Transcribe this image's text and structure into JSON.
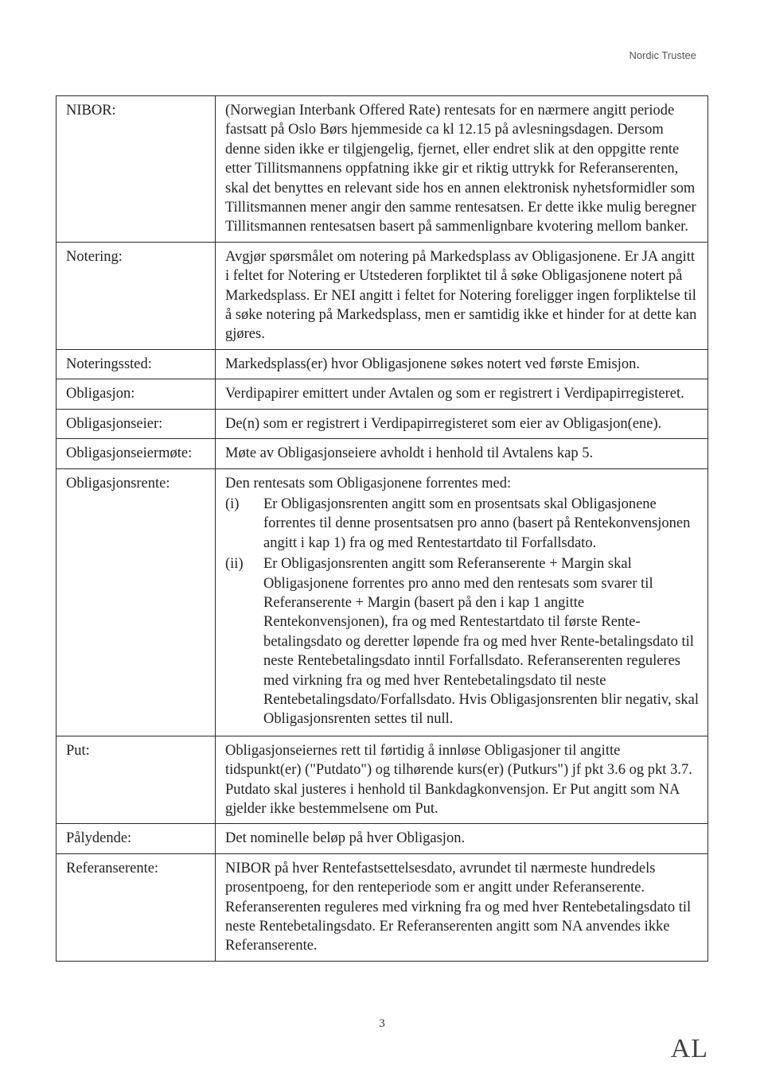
{
  "header": {
    "company": "Nordic Trustee"
  },
  "rows": [
    {
      "term": "NIBOR:",
      "definition": "(Norwegian Interbank Offered Rate) rentesats for en nærmere angitt periode fastsatt på Oslo Børs hjemmeside ca kl 12.15 på avlesningsdagen. Dersom denne siden ikke er tilgjengelig, fjernet, eller endret slik at den oppgitte rente etter Tillitsmannens oppfatning ikke gir et riktig uttrykk for Referanserenten, skal det benyttes en relevant side hos en annen elektronisk nyhetsformidler som Tillitsmannen mener angir den samme rentesatsen. Er dette ikke mulig beregner Tillitsmannen rentesatsen basert på sammenlignbare kvotering mellom banker."
    },
    {
      "term": "Notering:",
      "definition": "Avgjør spørsmålet om notering på Markedsplass av Obligasjonene. Er JA angitt i feltet for Notering er Utstederen forpliktet til å søke Obligasjonene notert på Markedsplass. Er NEI angitt i feltet for Notering foreligger ingen forpliktelse til å søke notering på Markedsplass, men er samtidig ikke et hinder for at dette kan gjøres."
    },
    {
      "term": "Noteringssted:",
      "definition": "Markedsplass(er) hvor Obligasjonene søkes notert ved første Emisjon."
    },
    {
      "term": "Obligasjon:",
      "definition": "Verdipapirer emittert under Avtalen og som er registrert i Verdipapirregisteret."
    },
    {
      "term": "Obligasjonseier:",
      "definition": "De(n) som er registrert i Verdipapirregisteret som eier av Obligasjon(ene)."
    },
    {
      "term": "Obligasjonseiermøte:",
      "definition": "Møte av Obligasjonseiere avholdt i henhold til Avtalens kap 5."
    },
    {
      "term": "Obligasjonsrente:",
      "intro": "Den rentesats som Obligasjonene forrentes med:",
      "items": [
        {
          "marker": "(i)",
          "text": "Er Obligasjonsrenten angitt som en prosentsats skal Obligasjonene forrentes til denne prosentsatsen pro anno (basert på Rentekonvensjonen angitt i kap 1) fra og med Rentestartdato til Forfallsdato."
        },
        {
          "marker": "(ii)",
          "text": "Er Obligasjonsrenten angitt som Referanserente + Margin skal Obligasjonene forrentes pro anno med den rentesats som svarer til Referanserente + Margin (basert på den i kap 1 angitte Rentekonvensjonen), fra og med Rentestartdato til første Rente-betalingsdato og deretter løpende fra og med hver Rente-betalingsdato til neste Rentebetalingsdato inntil Forfallsdato. Referanserenten reguleres med virkning fra og med hver Rentebetalingsdato til neste Rentebetalingsdato/Forfallsdato. Hvis Obligasjonsrenten blir negativ, skal Obligasjonsrenten settes til null."
        }
      ]
    },
    {
      "term": "Put:",
      "definition": "Obligasjonseiernes rett til førtidig å innløse Obligasjoner til angitte tidspunkt(er) (\"Putdato\") og tilhørende kurs(er) (Putkurs\") jf pkt 3.6 og pkt 3.7. Putdato skal justeres i henhold til Bankdagkonvensjon. Er Put angitt som NA gjelder ikke bestemmelsene om Put."
    },
    {
      "term": "Pålydende:",
      "definition": "Det nominelle beløp på hver Obligasjon."
    },
    {
      "term": "Referanserente:",
      "definition": "NIBOR på hver Rentefastsettelsesdato, avrundet til nærmeste hundredels prosentpoeng, for den renteperiode som er angitt under Referanserente. Referanserenten reguleres med virkning fra og med hver Rentebetalingsdato til neste Rentebetalingsdato. Er Referanserenten angitt som NA anvendes ikke Referanserente."
    }
  ],
  "page": {
    "number": "3"
  },
  "signature": {
    "initials": "AL"
  }
}
